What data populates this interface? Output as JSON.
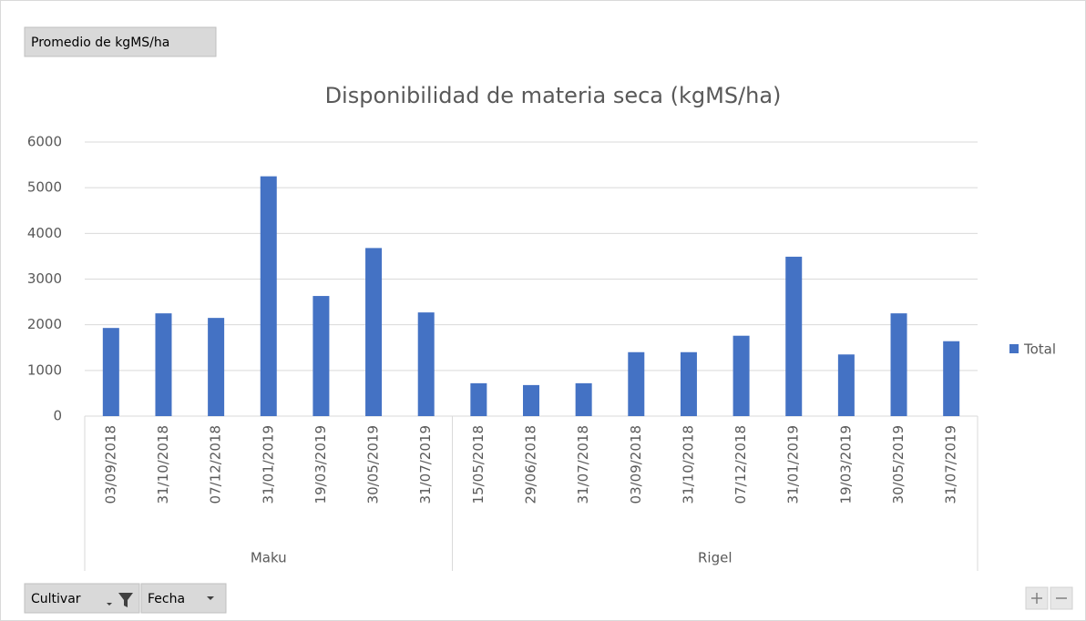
{
  "chart_data": {
    "type": "bar",
    "title": "Disponibilidad de materia seca (kgMS/ha)",
    "series": [
      {
        "name": "Total",
        "color": "#4472c4"
      }
    ],
    "groups": [
      {
        "name": "Maku",
        "categories": [
          "03/09/2018",
          "31/10/2018",
          "07/12/2018",
          "31/01/2019",
          "19/03/2019",
          "30/05/2019",
          "31/07/2019"
        ],
        "values": [
          1930,
          2250,
          2150,
          5250,
          2630,
          3680,
          2270
        ]
      },
      {
        "name": "Rigel",
        "categories": [
          "15/05/2018",
          "29/06/2018",
          "31/07/2018",
          "03/09/2018",
          "31/10/2018",
          "07/12/2018",
          "31/01/2019",
          "19/03/2019",
          "30/05/2019",
          "31/07/2019"
        ],
        "values": [
          720,
          680,
          720,
          1400,
          1400,
          1760,
          3490,
          1350,
          2250,
          1640
        ]
      }
    ],
    "ylim": [
      0,
      6000
    ],
    "yticks": [
      0,
      1000,
      2000,
      3000,
      4000,
      5000,
      6000
    ],
    "grid": true,
    "legend": "right"
  },
  "pivot_buttons": {
    "value_field": "Promedio de kgMS/ha",
    "axis_fields": [
      "Cultivar",
      "Fecha"
    ]
  }
}
